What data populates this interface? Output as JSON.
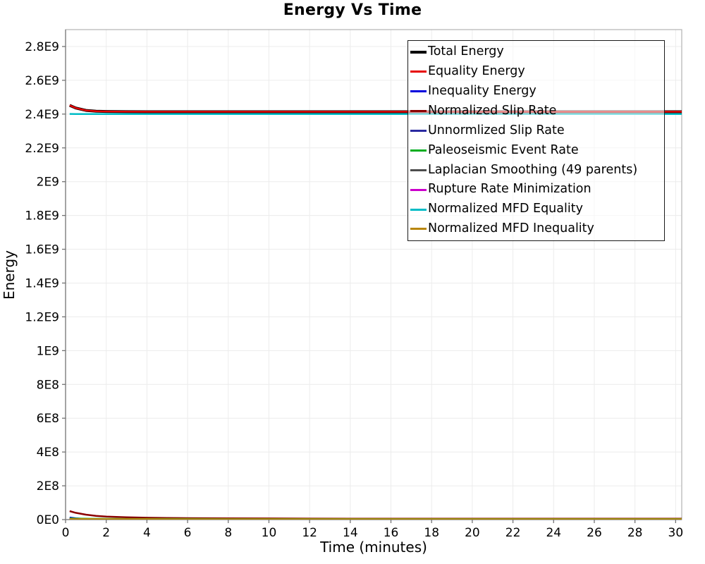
{
  "page": {
    "background": "#ffffff",
    "grid_color": "#ececec",
    "border_color": "#b8b8b8",
    "axis_color": "#8c8c8c",
    "tick_color": "#737373",
    "legend_background": "rgba(255,255,255,0.55)",
    "legend_border_color": "#1a1a1a"
  },
  "chart_data": {
    "type": "line",
    "title": "Energy Vs Time",
    "xlabel": "Time (minutes)",
    "ylabel": "Energy",
    "xlim": [
      0,
      30.3
    ],
    "ylim": [
      0,
      2900000000.0
    ],
    "grid": true,
    "legend_position": "upper-right-inside",
    "x_ticks": [
      0,
      2,
      4,
      6,
      8,
      10,
      12,
      14,
      16,
      18,
      20,
      22,
      24,
      26,
      28,
      30
    ],
    "y_ticks": [
      {
        "value": 0,
        "label": "0E0"
      },
      {
        "value": 200000000.0,
        "label": "2E8"
      },
      {
        "value": 400000000.0,
        "label": "4E8"
      },
      {
        "value": 600000000.0,
        "label": "6E8"
      },
      {
        "value": 800000000.0,
        "label": "8E8"
      },
      {
        "value": 1000000000.0,
        "label": "1E9"
      },
      {
        "value": 1200000000.0,
        "label": "1.2E9"
      },
      {
        "value": 1400000000.0,
        "label": "1.4E9"
      },
      {
        "value": 1600000000.0,
        "label": "1.6E9"
      },
      {
        "value": 1800000000.0,
        "label": "1.8E9"
      },
      {
        "value": 2000000000.0,
        "label": "2E9"
      },
      {
        "value": 2200000000.0,
        "label": "2.2E9"
      },
      {
        "value": 2400000000.0,
        "label": "2.4E9"
      },
      {
        "value": 2600000000.0,
        "label": "2.6E9"
      },
      {
        "value": 2800000000.0,
        "label": "2.8E9"
      }
    ],
    "x": [
      0.2,
      0.5,
      1,
      1.5,
      2,
      2.5,
      3,
      4,
      5,
      6,
      8,
      10,
      12,
      14,
      16,
      18,
      20,
      22,
      24,
      26,
      28,
      30,
      30.3
    ],
    "series": [
      {
        "name": "Total Energy",
        "color": "#000000",
        "line_width": 4,
        "values": [
          2452000000.0,
          2436000000.0,
          2422000000.0,
          2417000000.0,
          2415500000.0,
          2415000000.0,
          2414500000.0,
          2414000000.0,
          2414000000.0,
          2414000000.0,
          2414000000.0,
          2414000000.0,
          2414000000.0,
          2414000000.0,
          2414000000.0,
          2414000000.0,
          2414000000.0,
          2414000000.0,
          2414000000.0,
          2414000000.0,
          2414000000.0,
          2414000000.0,
          2414000000.0
        ]
      },
      {
        "name": "Equality Energy",
        "color": "#e60000",
        "line_width": 2.5,
        "values": [
          2452000000.0,
          2436000000.0,
          2422000000.0,
          2417000000.0,
          2415500000.0,
          2415000000.0,
          2414500000.0,
          2414000000.0,
          2414000000.0,
          2414000000.0,
          2414000000.0,
          2414000000.0,
          2414000000.0,
          2414000000.0,
          2414000000.0,
          2414000000.0,
          2414000000.0,
          2414000000.0,
          2414000000.0,
          2414000000.0,
          2414000000.0,
          2414000000.0,
          2414000000.0
        ]
      },
      {
        "name": "Inequality Energy",
        "color": "#0000dd",
        "line_width": 2.5,
        "values": [
          12000000.0,
          7000000.0,
          3500000.0,
          2200000.0,
          1600000.0,
          1300000.0,
          1100000.0,
          900000.0,
          800000.0,
          700000.0,
          600000.0,
          500000.0,
          500000.0,
          500000.0,
          500000.0,
          500000.0,
          500000.0,
          500000.0,
          500000.0,
          500000.0,
          500000.0,
          500000.0,
          500000.0
        ]
      },
      {
        "name": "Normalized Slip Rate",
        "color": "#8b0000",
        "line_width": 2.5,
        "values": [
          50000000.0,
          40000000.0,
          29000000.0,
          22000000.0,
          18000000.0,
          15500000.0,
          13500000.0,
          11000000.0,
          9500000.0,
          8500000.0,
          7200000.0,
          6500000.0,
          6000000.0,
          5600000.0,
          5300000.0,
          5100000.0,
          5000000.0,
          5000000.0,
          5000000.0,
          5000000.0,
          5000000.0,
          5000000.0,
          5000000.0
        ]
      },
      {
        "name": "Unnormlized Slip Rate",
        "color": "#2a2aa0",
        "line_width": 2.5,
        "values": [
          2000000.0,
          1500000.0,
          1000000.0,
          800000.0,
          700000.0,
          600000.0,
          550000.0,
          500000.0,
          450000.0,
          400000.0,
          400000.0,
          400000.0,
          400000.0,
          400000.0,
          400000.0,
          400000.0,
          400000.0,
          400000.0,
          400000.0,
          400000.0,
          400000.0,
          400000.0,
          400000.0
        ]
      },
      {
        "name": "Paleoseismic Event Rate",
        "color": "#00ad1f",
        "line_width": 2.5,
        "values": [
          7000000.0,
          6000000.0,
          5000000.0,
          4500000.0,
          4200000.0,
          4000000.0,
          3900000.0,
          3800000.0,
          3700000.0,
          3600000.0,
          3500000.0,
          3500000.0,
          3500000.0,
          3500000.0,
          3500000.0,
          3500000.0,
          3500000.0,
          3500000.0,
          3500000.0,
          3500000.0,
          3500000.0,
          3500000.0,
          3500000.0
        ]
      },
      {
        "name": "Laplacian Smoothing (49 parents)",
        "color": "#4d4d4d",
        "line_width": 2.5,
        "values": [
          1000000.0,
          800000.0,
          600000.0,
          500000.0,
          450000.0,
          400000.0,
          380000.0,
          350000.0,
          330000.0,
          320000.0,
          300000.0,
          300000.0,
          300000.0,
          300000.0,
          300000.0,
          300000.0,
          300000.0,
          300000.0,
          300000.0,
          300000.0,
          300000.0,
          300000.0,
          300000.0
        ]
      },
      {
        "name": "Rupture Rate Minimization",
        "color": "#cc00cc",
        "line_width": 2.5,
        "values": [
          500000.0,
          400000.0,
          300000.0,
          250000.0,
          220000.0,
          200000.0,
          200000.0,
          200000.0,
          200000.0,
          200000.0,
          200000.0,
          200000.0,
          200000.0,
          200000.0,
          200000.0,
          200000.0,
          200000.0,
          200000.0,
          200000.0,
          200000.0,
          200000.0,
          200000.0,
          200000.0
        ]
      },
      {
        "name": "Normalized MFD Equality",
        "color": "#00bcc6",
        "line_width": 2.5,
        "values": [
          2401000000.0,
          2400500000.0,
          2400000000.0,
          2400000000.0,
          2400000000.0,
          2400000000.0,
          2400000000.0,
          2400000000.0,
          2400000000.0,
          2400000000.0,
          2400000000.0,
          2400000000.0,
          2400000000.0,
          2400000000.0,
          2400000000.0,
          2400000000.0,
          2400000000.0,
          2400000000.0,
          2400000000.0,
          2400000000.0,
          2400000000.0,
          2400000000.0,
          2400000000.0
        ]
      },
      {
        "name": "Normalized MFD Inequality",
        "color": "#b8860b",
        "line_width": 2.5,
        "values": [
          4000000.0,
          3500000.0,
          3000000.0,
          2800000.0,
          2600000.0,
          2500000.0,
          2400000.0,
          2300000.0,
          2200000.0,
          2100000.0,
          2000000.0,
          2000000.0,
          2000000.0,
          2000000.0,
          2000000.0,
          2000000.0,
          2000000.0,
          2000000.0,
          2000000.0,
          2000000.0,
          2000000.0,
          2000000.0,
          2000000.0
        ]
      }
    ]
  }
}
